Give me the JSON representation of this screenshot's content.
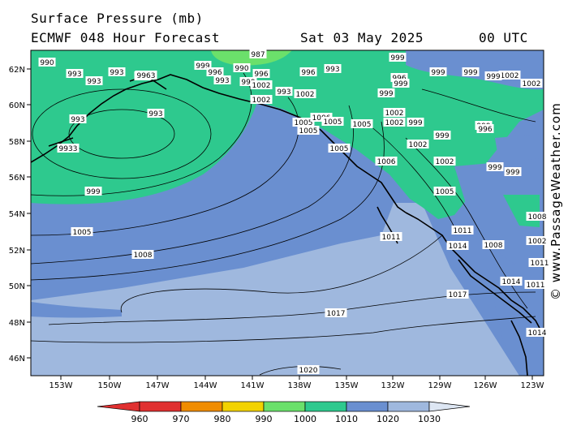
{
  "header": {
    "title": "Surface Pressure (mb)",
    "model": "ECMWF 048 Hour Forecast",
    "date": "Sat 03 May 2025",
    "time": "00 UTC"
  },
  "watermark": "© www.PassageWeather.com",
  "map": {
    "lat_labels": [
      "62N",
      "60N",
      "58N",
      "56N",
      "54N",
      "52N",
      "50N",
      "48N",
      "46N"
    ],
    "lon_labels": [
      "153W",
      "150W",
      "147W",
      "144W",
      "141W",
      "138W",
      "135W",
      "132W",
      "129W",
      "126W",
      "123W"
    ],
    "isobar_labels": [
      "990",
      "993",
      "993",
      "993",
      "993",
      "9963",
      "999",
      "996",
      "993",
      "990",
      "987",
      "999",
      "1002",
      "996",
      "993",
      "993",
      "996",
      "999",
      "996",
      "999",
      "999",
      "1002",
      "1002",
      "999",
      "1002",
      "1002",
      "999",
      "999",
      "999",
      "996",
      "993",
      "993",
      "9933",
      "999",
      "1005",
      "1006",
      "1005",
      "1005",
      "1005",
      "1005",
      "1006",
      "1002",
      "1002",
      "999",
      "1002",
      "999",
      "1002",
      "999",
      "999",
      "1005",
      "1011",
      "1005",
      "1008",
      "1008",
      "1002",
      "1011",
      "1014",
      "1014",
      "1014",
      "1017",
      "1017",
      "1020",
      "1011",
      "1011",
      "1008"
    ]
  },
  "colorbar": {
    "ticks": [
      "960",
      "970",
      "980",
      "990",
      "1000",
      "1010",
      "1020",
      "1030"
    ],
    "colors": [
      "#e03030",
      "#f08c00",
      "#f2d200",
      "#6be06b",
      "#2ec98e",
      "#6a8fd0",
      "#9fb8de",
      "#dde6f3"
    ]
  },
  "colors": {
    "land_low": "#5aa7e5",
    "field_990": "#2ec98e",
    "field_1000": "#6a8fd0",
    "field_1010": "#9fb8de",
    "coast": "#000000"
  }
}
